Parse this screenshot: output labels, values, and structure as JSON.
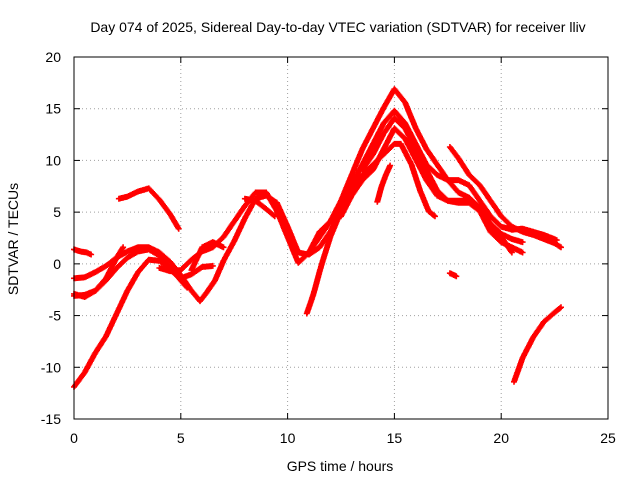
{
  "chart_data": {
    "type": "scatter",
    "title": "Day 074 of 2025, Sidereal Day-to-day VTEC variation (SDTVAR) for receiver lliv",
    "xlabel": "GPS time / hours",
    "ylabel": "SDTVAR / TECUs",
    "xlim": [
      0,
      25
    ],
    "ylim": [
      -15,
      20
    ],
    "xticks": [
      0,
      5,
      10,
      15,
      20,
      25
    ],
    "yticks": [
      -15,
      -10,
      -5,
      0,
      5,
      10,
      15,
      20
    ],
    "grid": true,
    "marker": "+",
    "color": "#ff0000",
    "series": [
      {
        "name": "track-a",
        "points": [
          [
            0.0,
            1.4
          ],
          [
            0.3,
            1.2
          ],
          [
            0.6,
            1.1
          ],
          [
            0.8,
            0.9
          ]
        ]
      },
      {
        "name": "track-b",
        "points": [
          [
            0.0,
            -11.9
          ],
          [
            0.5,
            -10.5
          ],
          [
            1.0,
            -8.6
          ],
          [
            1.5,
            -7.0
          ],
          [
            2.0,
            -4.8
          ],
          [
            2.5,
            -2.6
          ],
          [
            3.0,
            -0.8
          ],
          [
            3.5,
            0.4
          ],
          [
            4.0,
            0.3
          ],
          [
            4.5,
            -0.6
          ],
          [
            5.0,
            -1.4
          ],
          [
            5.5,
            -1.0
          ],
          [
            6.0,
            -0.3
          ],
          [
            6.5,
            -0.2
          ]
        ]
      },
      {
        "name": "track-c",
        "points": [
          [
            0.0,
            -1.4
          ],
          [
            0.5,
            -1.3
          ],
          [
            1.0,
            -0.8
          ],
          [
            1.5,
            -0.2
          ],
          [
            2.0,
            0.6
          ],
          [
            2.5,
            1.2
          ],
          [
            3.0,
            1.6
          ],
          [
            3.5,
            1.6
          ],
          [
            4.0,
            1.1
          ],
          [
            4.5,
            0.2
          ],
          [
            5.0,
            -1.1
          ],
          [
            5.5,
            -2.6
          ],
          [
            5.9,
            -3.6
          ],
          [
            6.2,
            -2.8
          ],
          [
            6.6,
            -1.6
          ],
          [
            7.0,
            0.3
          ],
          [
            7.5,
            2.2
          ],
          [
            8.0,
            4.4
          ],
          [
            8.5,
            6.3
          ],
          [
            9.0,
            6.6
          ],
          [
            9.5,
            5.9
          ],
          [
            10.0,
            3.6
          ],
          [
            10.5,
            1.1
          ],
          [
            11.0,
            0.9
          ],
          [
            11.5,
            1.6
          ],
          [
            12.0,
            3.1
          ],
          [
            12.5,
            5.2
          ],
          [
            13.0,
            7.6
          ],
          [
            13.5,
            9.6
          ],
          [
            14.0,
            11.6
          ],
          [
            14.5,
            13.6
          ],
          [
            15.0,
            14.8
          ],
          [
            15.5,
            13.6
          ],
          [
            16.0,
            11.6
          ],
          [
            16.5,
            9.6
          ],
          [
            17.0,
            8.6
          ],
          [
            17.5,
            8.1
          ],
          [
            18.0,
            8.1
          ],
          [
            18.5,
            7.6
          ],
          [
            19.0,
            6.1
          ],
          [
            19.5,
            4.6
          ],
          [
            20.0,
            3.6
          ],
          [
            20.5,
            3.3
          ],
          [
            21.0,
            3.4
          ],
          [
            21.5,
            3.1
          ],
          [
            22.0,
            2.8
          ],
          [
            22.6,
            2.3
          ]
        ]
      },
      {
        "name": "track-d",
        "points": [
          [
            0.0,
            -2.9
          ],
          [
            0.5,
            -3.2
          ],
          [
            1.0,
            -2.6
          ],
          [
            1.5,
            -1.6
          ],
          [
            2.0,
            -0.4
          ],
          [
            2.5,
            0.6
          ],
          [
            3.0,
            1.2
          ],
          [
            3.5,
            1.4
          ],
          [
            4.0,
            0.8
          ],
          [
            4.5,
            -0.4
          ],
          [
            5.0,
            -1.6
          ],
          [
            5.3,
            -2.3
          ]
        ]
      },
      {
        "name": "track-e",
        "points": [
          [
            0.0,
            -3.1
          ],
          [
            0.5,
            -3.0
          ],
          [
            1.0,
            -2.6
          ],
          [
            1.5,
            -1.4
          ],
          [
            2.0,
            0.6
          ],
          [
            2.3,
            1.6
          ]
        ]
      },
      {
        "name": "track-f",
        "points": [
          [
            5.5,
            -0.6
          ],
          [
            6.0,
            1.6
          ],
          [
            6.5,
            2.1
          ],
          [
            7.0,
            1.6
          ]
        ]
      },
      {
        "name": "track-g",
        "points": [
          [
            2.1,
            6.3
          ],
          [
            2.5,
            6.5
          ],
          [
            3.0,
            7.0
          ],
          [
            3.5,
            7.3
          ],
          [
            4.0,
            6.2
          ],
          [
            4.5,
            4.8
          ],
          [
            4.9,
            3.4
          ]
        ]
      },
      {
        "name": "track-h",
        "points": [
          [
            4.0,
            -0.4
          ],
          [
            4.5,
            -0.7
          ],
          [
            5.0,
            -0.6
          ],
          [
            5.5,
            0.4
          ],
          [
            6.0,
            1.2
          ],
          [
            6.5,
            1.6
          ],
          [
            7.0,
            2.6
          ],
          [
            7.5,
            4.1
          ],
          [
            8.0,
            5.6
          ],
          [
            8.5,
            6.9
          ],
          [
            9.0,
            6.9
          ],
          [
            9.5,
            5.1
          ],
          [
            10.0,
            2.6
          ],
          [
            10.5,
            0.1
          ],
          [
            11.0,
            1.1
          ],
          [
            11.5,
            2.6
          ],
          [
            12.0,
            4.1
          ],
          [
            12.5,
            6.1
          ],
          [
            13.0,
            8.6
          ],
          [
            13.5,
            11.1
          ],
          [
            14.0,
            13.1
          ],
          [
            14.5,
            15.1
          ],
          [
            15.0,
            16.9
          ],
          [
            15.5,
            15.6
          ],
          [
            16.0,
            13.1
          ],
          [
            16.5,
            11.1
          ],
          [
            17.0,
            9.6
          ],
          [
            17.5,
            8.1
          ],
          [
            18.0,
            6.9
          ],
          [
            18.5,
            6.4
          ],
          [
            19.0,
            5.4
          ],
          [
            19.5,
            3.9
          ],
          [
            20.0,
            2.9
          ],
          [
            20.5,
            2.4
          ],
          [
            21.0,
            2.1
          ]
        ]
      },
      {
        "name": "track-i",
        "points": [
          [
            13.5,
            9.1
          ],
          [
            14.0,
            10.6
          ],
          [
            14.5,
            12.6
          ],
          [
            15.0,
            14.1
          ],
          [
            15.5,
            13.1
          ],
          [
            16.0,
            11.1
          ],
          [
            16.5,
            9.1
          ],
          [
            17.0,
            7.1
          ],
          [
            17.5,
            6.1
          ],
          [
            18.0,
            5.9
          ],
          [
            18.5,
            5.9
          ],
          [
            19.0,
            5.1
          ],
          [
            19.5,
            3.1
          ],
          [
            20.0,
            2.1
          ],
          [
            20.5,
            1.6
          ],
          [
            21.0,
            1.1
          ]
        ]
      },
      {
        "name": "track-j",
        "points": [
          [
            10.9,
            -4.8
          ],
          [
            11.2,
            -3.0
          ],
          [
            11.6,
            0.0
          ],
          [
            12.0,
            2.6
          ],
          [
            12.5,
            5.1
          ],
          [
            13.0,
            7.1
          ],
          [
            13.5,
            8.6
          ],
          [
            14.0,
            9.6
          ],
          [
            14.5,
            10.6
          ],
          [
            15.0,
            11.6
          ],
          [
            15.3,
            11.6
          ],
          [
            15.8,
            9.6
          ],
          [
            16.2,
            7.1
          ],
          [
            16.6,
            5.1
          ],
          [
            16.9,
            4.6
          ]
        ]
      },
      {
        "name": "track-k",
        "points": [
          [
            11.0,
            1.1
          ],
          [
            11.5,
            3.1
          ],
          [
            12.0,
            4.1
          ],
          [
            12.5,
            4.6
          ],
          [
            13.0,
            6.6
          ],
          [
            13.5,
            8.1
          ],
          [
            14.0,
            9.1
          ],
          [
            14.5,
            11.1
          ],
          [
            15.0,
            13.1
          ],
          [
            15.5,
            12.1
          ],
          [
            16.0,
            10.1
          ],
          [
            16.5,
            8.1
          ],
          [
            17.0,
            6.6
          ],
          [
            17.5,
            6.1
          ],
          [
            18.0,
            6.1
          ],
          [
            18.5,
            6.1
          ],
          [
            19.0,
            5.1
          ],
          [
            19.5,
            3.6
          ],
          [
            20.0,
            2.6
          ],
          [
            20.5,
            1.1
          ]
        ]
      },
      {
        "name": "track-l",
        "points": [
          [
            14.2,
            6.0
          ],
          [
            14.4,
            7.5
          ],
          [
            14.6,
            8.6
          ],
          [
            14.8,
            9.5
          ]
        ]
      },
      {
        "name": "track-m",
        "points": [
          [
            8.0,
            6.3
          ],
          [
            8.5,
            6.1
          ],
          [
            9.0,
            5.3
          ],
          [
            9.4,
            4.6
          ]
        ]
      },
      {
        "name": "track-n",
        "points": [
          [
            17.6,
            11.3
          ],
          [
            18.0,
            10.2
          ],
          [
            18.5,
            8.6
          ],
          [
            19.0,
            7.6
          ],
          [
            19.5,
            6.1
          ],
          [
            20.0,
            4.6
          ],
          [
            20.5,
            3.6
          ],
          [
            21.0,
            3.1
          ],
          [
            21.5,
            2.8
          ],
          [
            22.0,
            2.4
          ],
          [
            22.5,
            2.0
          ],
          [
            22.8,
            1.6
          ]
        ]
      },
      {
        "name": "track-o",
        "points": [
          [
            20.6,
            -11.4
          ],
          [
            21.0,
            -9.1
          ],
          [
            21.5,
            -7.1
          ],
          [
            22.0,
            -5.6
          ],
          [
            22.5,
            -4.7
          ],
          [
            22.8,
            -4.2
          ]
        ]
      },
      {
        "name": "track-p",
        "points": [
          [
            17.6,
            -0.9
          ],
          [
            17.9,
            -1.2
          ]
        ]
      }
    ]
  }
}
